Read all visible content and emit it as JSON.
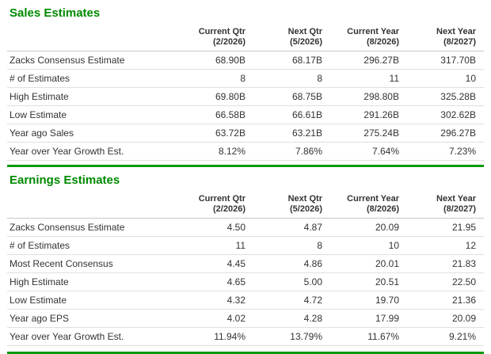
{
  "colors": {
    "title_green": "#008a00",
    "divider_green": "#0a9a0a",
    "row_border": "#e0e0e0",
    "header_border": "#c8c8c8",
    "text": "#333333"
  },
  "sales": {
    "title": "Sales Estimates",
    "columns": [
      {
        "label": "Current Qtr",
        "sub": "(2/2026)"
      },
      {
        "label": "Next Qtr",
        "sub": "(5/2026)"
      },
      {
        "label": "Current Year",
        "sub": "(8/2026)"
      },
      {
        "label": "Next Year",
        "sub": "(8/2027)"
      }
    ],
    "rows": [
      {
        "label": "Zacks Consensus Estimate",
        "values": [
          "68.90B",
          "68.17B",
          "296.27B",
          "317.70B"
        ]
      },
      {
        "label": "# of Estimates",
        "values": [
          "8",
          "8",
          "11",
          "10"
        ]
      },
      {
        "label": "High Estimate",
        "values": [
          "69.80B",
          "68.75B",
          "298.80B",
          "325.28B"
        ]
      },
      {
        "label": "Low Estimate",
        "values": [
          "66.58B",
          "66.61B",
          "291.26B",
          "302.62B"
        ]
      },
      {
        "label": "Year ago Sales",
        "values": [
          "63.72B",
          "63.21B",
          "275.24B",
          "296.27B"
        ]
      },
      {
        "label": "Year over Year Growth Est.",
        "values": [
          "8.12%",
          "7.86%",
          "7.64%",
          "7.23%"
        ]
      }
    ]
  },
  "earnings": {
    "title": "Earnings Estimates",
    "columns": [
      {
        "label": "Current Qtr",
        "sub": "(2/2026)"
      },
      {
        "label": "Next Qtr",
        "sub": "(5/2026)"
      },
      {
        "label": "Current Year",
        "sub": "(8/2026)"
      },
      {
        "label": "Next Year",
        "sub": "(8/2027)"
      }
    ],
    "rows": [
      {
        "label": "Zacks Consensus Estimate",
        "values": [
          "4.50",
          "4.87",
          "20.09",
          "21.95"
        ]
      },
      {
        "label": "# of Estimates",
        "values": [
          "11",
          "8",
          "10",
          "12"
        ]
      },
      {
        "label": "Most Recent Consensus",
        "values": [
          "4.45",
          "4.86",
          "20.01",
          "21.83"
        ]
      },
      {
        "label": "High Estimate",
        "values": [
          "4.65",
          "5.00",
          "20.51",
          "22.50"
        ]
      },
      {
        "label": "Low Estimate",
        "values": [
          "4.32",
          "4.72",
          "19.70",
          "21.36"
        ]
      },
      {
        "label": "Year ago EPS",
        "values": [
          "4.02",
          "4.28",
          "17.99",
          "20.09"
        ]
      },
      {
        "label": "Year over Year Growth Est.",
        "values": [
          "11.94%",
          "13.79%",
          "11.67%",
          "9.21%"
        ]
      }
    ]
  }
}
